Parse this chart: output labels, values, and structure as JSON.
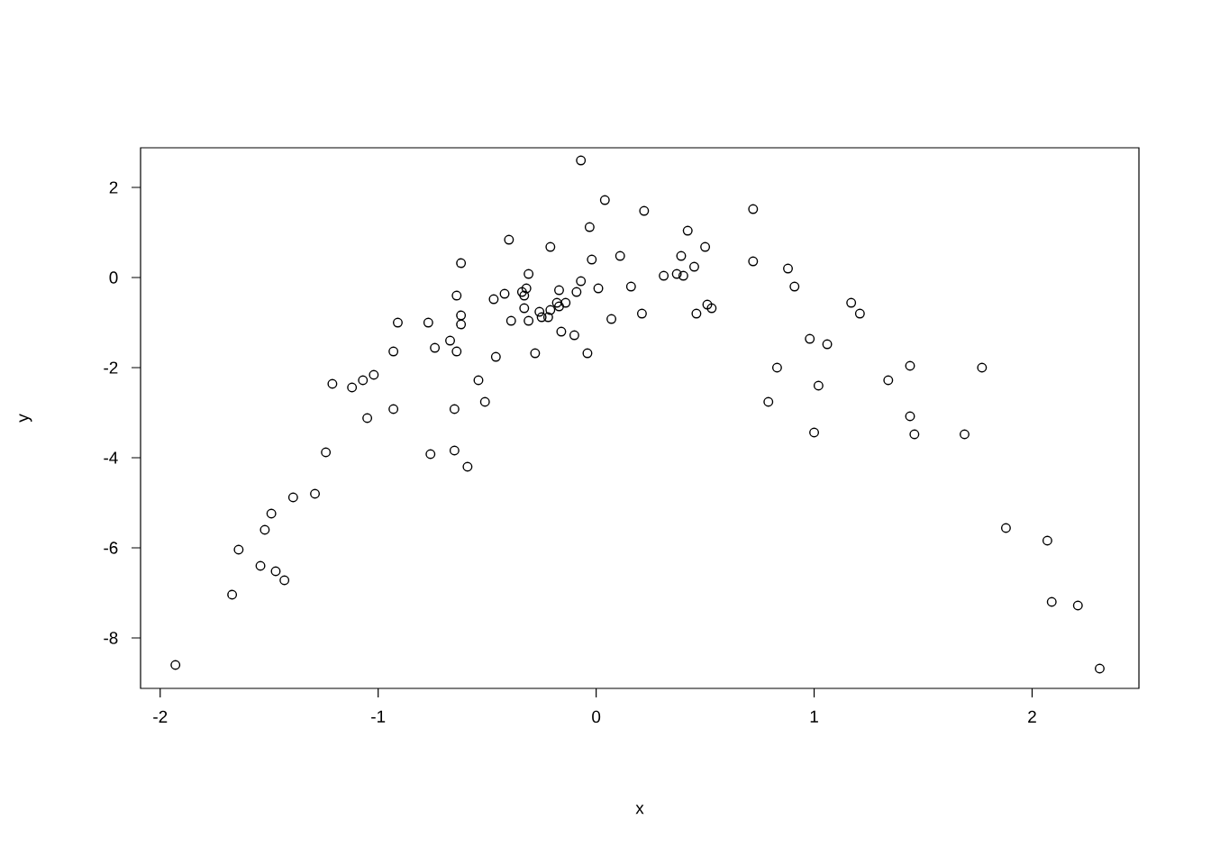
{
  "chart_data": {
    "type": "scatter",
    "xlabel": "x",
    "ylabel": "y",
    "xlim": [
      -2.09,
      2.49
    ],
    "ylim": [
      -9.12,
      2.88
    ],
    "xticks": [
      -2,
      -1,
      0,
      1,
      2
    ],
    "yticks": [
      -8,
      -6,
      -4,
      -2,
      0,
      2
    ],
    "marker": "circle",
    "grid": false,
    "series": [
      {
        "color": "#000000",
        "x": [
          -1.93,
          -1.67,
          -1.64,
          -1.54,
          -1.52,
          -1.49,
          -1.47,
          -1.43,
          -1.39,
          -1.29,
          -1.24,
          -1.21,
          -1.12,
          -1.07,
          -1.05,
          -1.02,
          -0.93,
          -0.93,
          -0.91,
          -0.77,
          -0.76,
          -0.74,
          -0.67,
          -0.65,
          -0.65,
          -0.64,
          -0.64,
          -0.62,
          -0.62,
          -0.62,
          -0.59,
          -0.54,
          -0.51,
          -0.47,
          -0.46,
          -0.42,
          -0.4,
          -0.39,
          -0.34,
          -0.33,
          -0.33,
          -0.32,
          -0.31,
          -0.31,
          -0.28,
          -0.26,
          -0.25,
          -0.22,
          -0.21,
          -0.21,
          -0.18,
          -0.17,
          -0.17,
          -0.16,
          -0.14,
          -0.1,
          -0.09,
          -0.07,
          -0.07,
          -0.04,
          -0.03,
          -0.02,
          0.01,
          0.04,
          0.07,
          0.11,
          0.16,
          0.21,
          0.22,
          0.31,
          0.37,
          0.39,
          0.4,
          0.42,
          0.45,
          0.46,
          0.5,
          0.51,
          0.53,
          0.72,
          0.72,
          0.79,
          0.83,
          0.88,
          0.91,
          0.98,
          1.0,
          1.02,
          1.06,
          1.34,
          1.17,
          1.21,
          1.44,
          1.44,
          1.46,
          1.69,
          1.77,
          1.88,
          2.07,
          2.09,
          2.21,
          2.31
        ],
        "values": [
          -8.6,
          -7.04,
          -6.04,
          -6.4,
          -5.6,
          -5.24,
          -6.52,
          -6.72,
          -4.88,
          -4.8,
          -3.88,
          -2.36,
          -2.44,
          -2.28,
          -3.12,
          -2.16,
          -2.92,
          -1.64,
          -1.0,
          -1.0,
          -3.92,
          -1.56,
          -1.4,
          -3.84,
          -2.92,
          -0.4,
          -1.64,
          -0.84,
          -1.04,
          0.32,
          -4.2,
          -2.28,
          -2.76,
          -0.48,
          -1.76,
          -0.36,
          0.84,
          -0.96,
          -0.32,
          -0.4,
          -0.68,
          -0.24,
          0.08,
          -0.96,
          -1.68,
          -0.76,
          -0.88,
          -0.88,
          -0.72,
          0.68,
          -0.56,
          -0.28,
          -0.64,
          -1.2,
          -0.56,
          -1.28,
          -0.32,
          2.6,
          -0.08,
          -1.68,
          1.12,
          0.4,
          -0.24,
          1.72,
          -0.92,
          0.48,
          -0.2,
          -0.8,
          1.48,
          0.04,
          0.08,
          0.48,
          0.04,
          1.04,
          0.24,
          -0.8,
          0.68,
          -0.6,
          -0.68,
          1.52,
          0.36,
          -2.76,
          -2.0,
          0.2,
          -0.2,
          -1.36,
          -3.44,
          -2.4,
          -1.48,
          -2.28,
          -0.56,
          -0.8,
          -1.96,
          -3.08,
          -3.48,
          -3.48,
          -2.0,
          -5.56,
          -5.84,
          -7.2,
          -7.28,
          -8.68
        ]
      }
    ]
  }
}
